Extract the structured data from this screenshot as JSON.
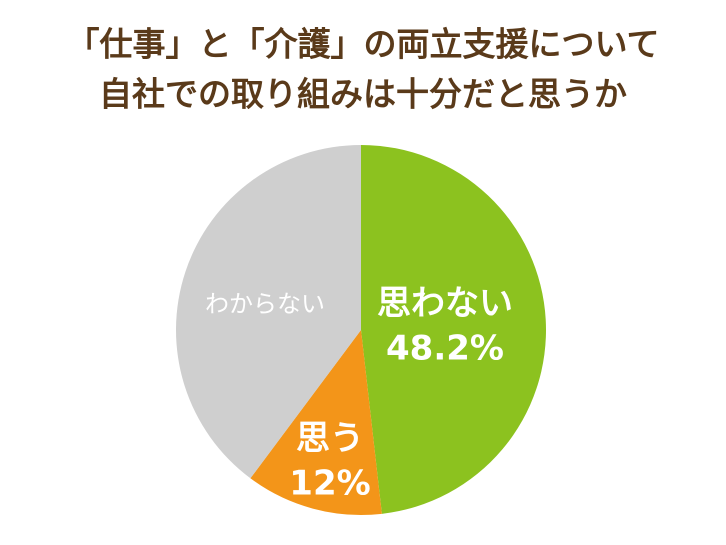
{
  "chart_data": {
    "type": "pie",
    "title": [
      "「仕事」と「介護」の両立支援について",
      "自社での取り組みは十分だと思うか"
    ],
    "categories": [
      "思わない",
      "思う",
      "わからない"
    ],
    "values": [
      48.2,
      12,
      39.8
    ],
    "value_labels": [
      "48.2%",
      "12%",
      null
    ],
    "colors": [
      "#8cc21f",
      "#f39519",
      "#cfcfcf"
    ]
  }
}
